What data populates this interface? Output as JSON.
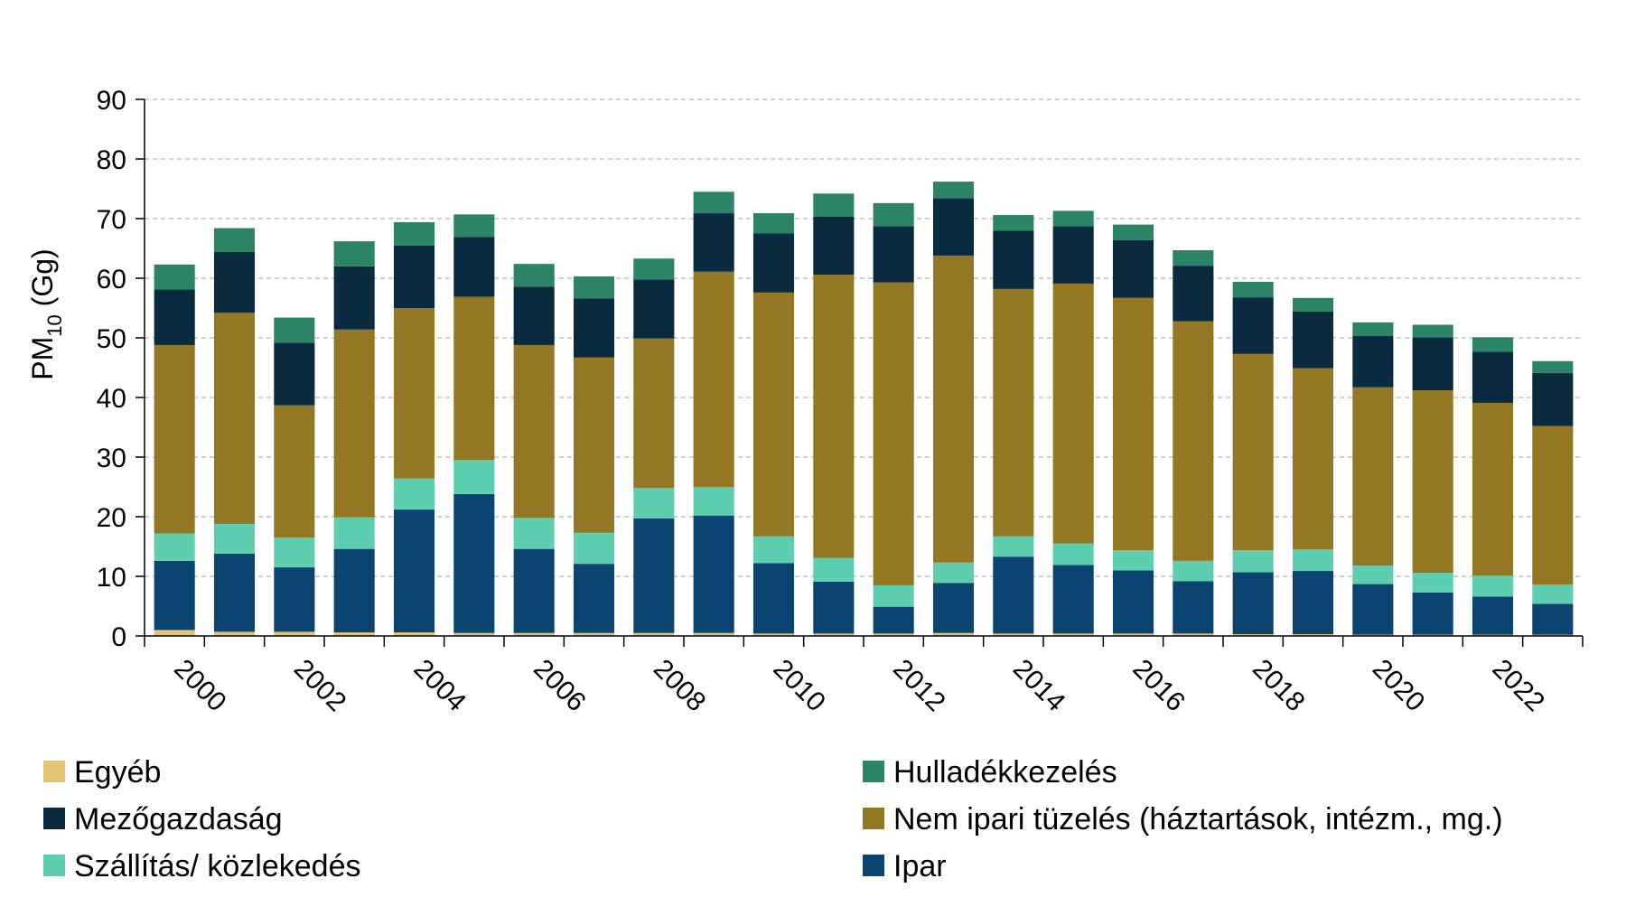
{
  "chart_data": {
    "type": "bar",
    "stacked": true,
    "title": "",
    "xlabel": "",
    "ylabel": "PM10 (Gg)",
    "ylabel_main": "PM",
    "ylabel_sub": "10",
    "ylabel_unit": " (Gg)",
    "ylim": [
      0,
      90
    ],
    "yticks": [
      0,
      10,
      20,
      30,
      40,
      50,
      60,
      70,
      80,
      90
    ],
    "grid": true,
    "legend_position": "bottom",
    "categories": [
      "2000",
      "2001",
      "2002",
      "2003",
      "2004",
      "2005",
      "2006",
      "2007",
      "2008",
      "2009",
      "2010",
      "2011",
      "2012",
      "2013",
      "2014",
      "2015",
      "2016",
      "2017",
      "2018",
      "2019",
      "2020",
      "2021",
      "2022",
      "2023"
    ],
    "xtick_labels": [
      "2000",
      "2002",
      "2004",
      "2006",
      "2008",
      "2010",
      "2012",
      "2014",
      "2016",
      "2018",
      "2020",
      "2022"
    ],
    "series": [
      {
        "name": "Egyéb",
        "color": "#E5C373",
        "values": [
          1.0,
          0.7,
          0.7,
          0.6,
          0.6,
          0.5,
          0.5,
          0.5,
          0.5,
          0.5,
          0.4,
          0.4,
          0.4,
          0.5,
          0.4,
          0.4,
          0.4,
          0.4,
          0.3,
          0.3,
          0.2,
          0.2,
          0.2,
          0.2
        ]
      },
      {
        "name": "Ipar",
        "color": "#0B4470",
        "values": [
          11.6,
          13.1,
          10.8,
          14.0,
          20.6,
          23.3,
          14.1,
          11.6,
          19.2,
          19.7,
          11.8,
          8.7,
          4.5,
          8.4,
          12.9,
          11.5,
          10.6,
          8.8,
          10.4,
          10.6,
          8.5,
          7.1,
          6.4,
          5.2
        ]
      },
      {
        "name": "Szállítás/ közlekedés",
        "color": "#5DCEAF",
        "values": [
          4.6,
          5.0,
          5.0,
          5.3,
          5.2,
          5.7,
          5.2,
          5.2,
          5.1,
          4.8,
          4.5,
          4.0,
          3.6,
          3.4,
          3.4,
          3.6,
          3.4,
          3.4,
          3.7,
          3.6,
          3.1,
          3.3,
          3.5,
          3.2
        ]
      },
      {
        "name": "Nem ipari tüzelés (háztartások, intézm., mg.)",
        "color": "#937722",
        "values": [
          31.6,
          35.4,
          22.2,
          31.5,
          28.6,
          27.4,
          29.0,
          29.4,
          25.1,
          36.1,
          40.9,
          47.5,
          50.8,
          51.5,
          41.5,
          43.6,
          42.3,
          40.2,
          32.9,
          30.4,
          29.9,
          30.6,
          29.0,
          26.6
        ]
      },
      {
        "name": "Mezőgazdaság",
        "color": "#0A2A3F",
        "values": [
          9.3,
          10.2,
          10.5,
          10.6,
          10.5,
          10.0,
          9.8,
          9.9,
          9.9,
          9.8,
          9.9,
          9.7,
          9.4,
          9.6,
          9.8,
          9.6,
          9.7,
          9.3,
          9.5,
          9.5,
          8.6,
          8.9,
          8.6,
          8.9
        ]
      },
      {
        "name": "Hulladékkezelés",
        "color": "#2C8466",
        "values": [
          4.2,
          4.0,
          4.2,
          4.2,
          3.9,
          3.8,
          3.8,
          3.7,
          3.5,
          3.6,
          3.4,
          3.9,
          3.9,
          2.8,
          2.6,
          2.6,
          2.6,
          2.6,
          2.6,
          2.3,
          2.3,
          2.1,
          2.4,
          2.0
        ]
      }
    ],
    "legend_order": [
      "Egyéb",
      "Hulladékkezelés",
      "Mezőgazdaság",
      "Nem ipari tüzelés (háztartások, intézm., mg.)",
      "Szállítás/ közlekedés",
      "Ipar"
    ]
  }
}
